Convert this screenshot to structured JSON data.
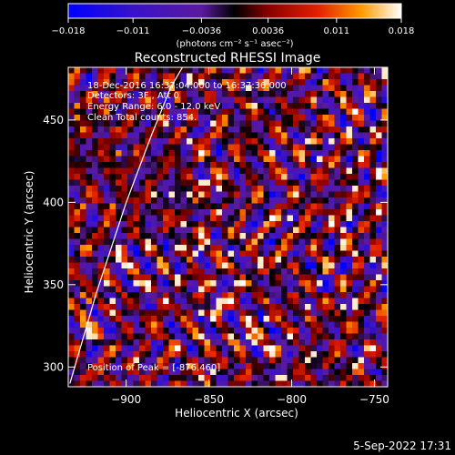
{
  "chart_data": {
    "type": "heatmap",
    "title": "Reconstructed RHESSI Image",
    "xlabel": "Heliocentric X (arcsec)",
    "ylabel": "Heliocentric Y (arcsec)",
    "xlim": [
      -935,
      -742
    ],
    "ylim": [
      288,
      482
    ],
    "x_ticks": [
      -900,
      -850,
      -800,
      -750
    ],
    "y_ticks": [
      300,
      350,
      400,
      450
    ],
    "x_tick_labels": [
      "−900",
      "−850",
      "−800",
      "−750"
    ],
    "y_tick_labels": [
      "300",
      "350",
      "400",
      "450"
    ],
    "colorbar": {
      "range": [
        -0.018,
        0.018
      ],
      "ticks": [
        -0.018,
        -0.011,
        -0.0036,
        0.0036,
        0.011,
        0.018
      ],
      "tick_labels": [
        "−0.018",
        "−0.011",
        "−0.0036",
        "0.0036",
        "0.011",
        "0.018"
      ],
      "unit_label": "(photons cm⁻² s⁻¹ asec⁻²)"
    },
    "annotations": [
      "18-Dec-2016 16:37:04.000 to 16:37:36.000",
      "Detectors: 3F  , Att 0",
      "Energy Range: 6.0 - 12.0 keV",
      "Clean    Total counts: 854.",
      "Position of Peak = [-876,460]"
    ],
    "limb": [
      [
        -934,
        290
      ],
      [
        -918,
        345
      ],
      [
        -900,
        400
      ],
      [
        -885,
        440
      ],
      [
        -873,
        470
      ],
      [
        -866,
        482
      ]
    ],
    "grid": false,
    "timestamp": "5-Sep-2022 17:31"
  }
}
